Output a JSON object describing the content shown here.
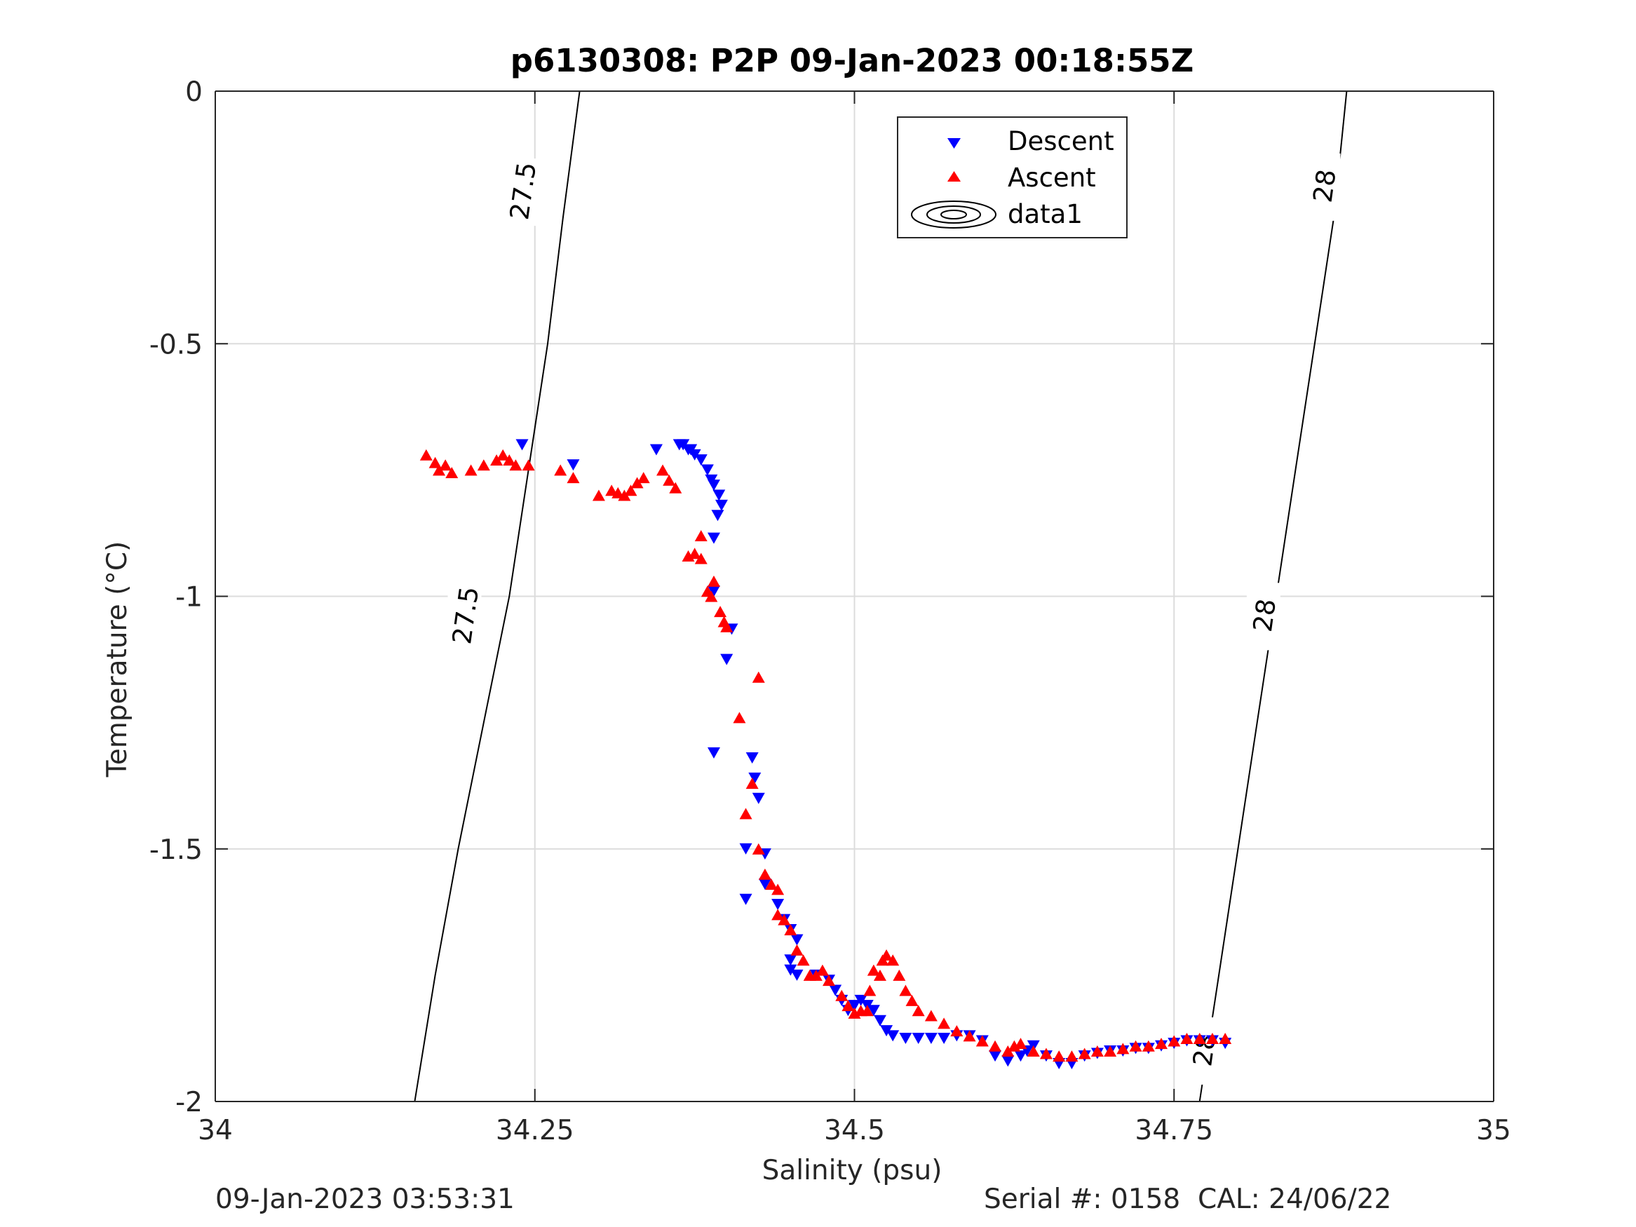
{
  "chart_data": {
    "type": "scatter",
    "title": "p6130308: P2P 09-Jan-2023 00:18:55Z",
    "xlabel": "Salinity (psu)",
    "ylabel": "Temperature (°C)",
    "xlim": [
      34,
      35
    ],
    "ylim": [
      -2,
      0
    ],
    "xticks": [
      34,
      34.25,
      34.5,
      34.75,
      35
    ],
    "xtick_labels": [
      "34",
      "34.25",
      "34.5",
      "34.75",
      "35"
    ],
    "yticks": [
      0,
      -0.5,
      -1,
      -1.5,
      -2
    ],
    "ytick_labels": [
      "0",
      "-0.5",
      "-1",
      "-1.5",
      "-2"
    ],
    "grid": true,
    "legend_position": "top-right",
    "legend": [
      "Descent",
      "Ascent",
      "data1"
    ],
    "contours": [
      {
        "label": "27.5",
        "points": [
          [
            34.156,
            -2
          ],
          [
            34.172,
            -1.75
          ],
          [
            34.19,
            -1.5
          ],
          [
            34.21,
            -1.25
          ],
          [
            34.23,
            -1.0
          ],
          [
            34.245,
            -0.75
          ],
          [
            34.26,
            -0.5
          ],
          [
            34.272,
            -0.25
          ],
          [
            34.285,
            0
          ]
        ],
        "label_positions": [
          [
            34.195,
            -1.04
          ],
          [
            34.24,
            -0.2
          ]
        ]
      },
      {
        "label": "28",
        "points": [
          [
            34.77,
            -2
          ],
          [
            34.785,
            -1.75
          ],
          [
            34.8,
            -1.5
          ],
          [
            34.815,
            -1.25
          ],
          [
            34.83,
            -1.0
          ],
          [
            34.845,
            -0.75
          ],
          [
            34.86,
            -0.5
          ],
          [
            34.875,
            -0.25
          ],
          [
            34.885,
            0
          ]
        ],
        "label_positions": [
          [
            34.773,
            -1.9
          ],
          [
            34.82,
            -1.04
          ],
          [
            34.867,
            -0.19
          ]
        ]
      }
    ],
    "series": [
      {
        "name": "Descent",
        "color": "#0000ff",
        "marker": "triangle-down",
        "points": [
          [
            34.24,
            -0.7
          ],
          [
            34.28,
            -0.74
          ],
          [
            34.345,
            -0.71
          ],
          [
            34.363,
            -0.7
          ],
          [
            34.366,
            -0.7
          ],
          [
            34.37,
            -0.71
          ],
          [
            34.372,
            -0.71
          ],
          [
            34.375,
            -0.72
          ],
          [
            34.38,
            -0.73
          ],
          [
            34.385,
            -0.75
          ],
          [
            34.388,
            -0.77
          ],
          [
            34.39,
            -0.78
          ],
          [
            34.394,
            -0.8
          ],
          [
            34.396,
            -0.82
          ],
          [
            34.393,
            -0.84
          ],
          [
            34.39,
            -0.885
          ],
          [
            34.39,
            -0.99
          ],
          [
            34.404,
            -1.065
          ],
          [
            34.4,
            -1.125
          ],
          [
            34.39,
            -1.31
          ],
          [
            34.42,
            -1.32
          ],
          [
            34.422,
            -1.36
          ],
          [
            34.425,
            -1.4
          ],
          [
            34.415,
            -1.5
          ],
          [
            34.43,
            -1.51
          ],
          [
            34.415,
            -1.6
          ],
          [
            34.43,
            -1.57
          ],
          [
            34.44,
            -1.61
          ],
          [
            34.445,
            -1.64
          ],
          [
            34.45,
            -1.66
          ],
          [
            34.455,
            -1.68
          ],
          [
            34.45,
            -1.72
          ],
          [
            34.45,
            -1.74
          ],
          [
            34.455,
            -1.75
          ],
          [
            34.47,
            -1.75
          ],
          [
            34.48,
            -1.76
          ],
          [
            34.485,
            -1.78
          ],
          [
            34.49,
            -1.8
          ],
          [
            34.495,
            -1.82
          ],
          [
            34.5,
            -1.81
          ],
          [
            34.505,
            -1.8
          ],
          [
            34.51,
            -1.81
          ],
          [
            34.515,
            -1.82
          ],
          [
            34.52,
            -1.84
          ],
          [
            34.525,
            -1.86
          ],
          [
            34.53,
            -1.87
          ],
          [
            34.54,
            -1.875
          ],
          [
            34.55,
            -1.875
          ],
          [
            34.56,
            -1.875
          ],
          [
            34.57,
            -1.875
          ],
          [
            34.58,
            -1.87
          ],
          [
            34.59,
            -1.87
          ],
          [
            34.6,
            -1.88
          ],
          [
            34.61,
            -1.91
          ],
          [
            34.62,
            -1.92
          ],
          [
            34.63,
            -1.91
          ],
          [
            34.635,
            -1.9
          ],
          [
            34.64,
            -1.89
          ],
          [
            34.65,
            -1.91
          ],
          [
            34.66,
            -1.925
          ],
          [
            34.67,
            -1.925
          ],
          [
            34.68,
            -1.91
          ],
          [
            34.69,
            -1.905
          ],
          [
            34.7,
            -1.9
          ],
          [
            34.71,
            -1.9
          ],
          [
            34.72,
            -1.895
          ],
          [
            34.73,
            -1.895
          ],
          [
            34.74,
            -1.89
          ],
          [
            34.75,
            -1.885
          ],
          [
            34.76,
            -1.88
          ],
          [
            34.77,
            -1.88
          ],
          [
            34.78,
            -1.88
          ],
          [
            34.79,
            -1.885
          ]
        ]
      },
      {
        "name": "Ascent",
        "color": "#ff0000",
        "marker": "triangle-up",
        "points": [
          [
            34.165,
            -0.72
          ],
          [
            34.172,
            -0.735
          ],
          [
            34.175,
            -0.75
          ],
          [
            34.18,
            -0.74
          ],
          [
            34.185,
            -0.755
          ],
          [
            34.2,
            -0.75
          ],
          [
            34.21,
            -0.74
          ],
          [
            34.22,
            -0.73
          ],
          [
            34.225,
            -0.72
          ],
          [
            34.23,
            -0.73
          ],
          [
            34.235,
            -0.74
          ],
          [
            34.245,
            -0.74
          ],
          [
            34.27,
            -0.75
          ],
          [
            34.28,
            -0.765
          ],
          [
            34.3,
            -0.8
          ],
          [
            34.31,
            -0.79
          ],
          [
            34.315,
            -0.795
          ],
          [
            34.32,
            -0.8
          ],
          [
            34.325,
            -0.79
          ],
          [
            34.33,
            -0.775
          ],
          [
            34.335,
            -0.765
          ],
          [
            34.35,
            -0.75
          ],
          [
            34.355,
            -0.77
          ],
          [
            34.36,
            -0.785
          ],
          [
            34.37,
            -0.92
          ],
          [
            34.375,
            -0.915
          ],
          [
            34.38,
            -0.88
          ],
          [
            34.38,
            -0.925
          ],
          [
            34.385,
            -0.99
          ],
          [
            34.388,
            -1.0
          ],
          [
            34.39,
            -0.97
          ],
          [
            34.395,
            -1.03
          ],
          [
            34.398,
            -1.05
          ],
          [
            34.4,
            -1.06
          ],
          [
            34.41,
            -1.24
          ],
          [
            34.425,
            -1.16
          ],
          [
            34.42,
            -1.37
          ],
          [
            34.415,
            -1.43
          ],
          [
            34.425,
            -1.5
          ],
          [
            34.43,
            -1.55
          ],
          [
            34.435,
            -1.57
          ],
          [
            34.44,
            -1.58
          ],
          [
            34.44,
            -1.63
          ],
          [
            34.445,
            -1.64
          ],
          [
            34.45,
            -1.66
          ],
          [
            34.455,
            -1.7
          ],
          [
            34.46,
            -1.72
          ],
          [
            34.465,
            -1.75
          ],
          [
            34.47,
            -1.75
          ],
          [
            34.475,
            -1.74
          ],
          [
            34.48,
            -1.76
          ],
          [
            34.49,
            -1.79
          ],
          [
            34.495,
            -1.81
          ],
          [
            34.5,
            -1.825
          ],
          [
            34.505,
            -1.82
          ],
          [
            34.51,
            -1.82
          ],
          [
            34.512,
            -1.78
          ],
          [
            34.515,
            -1.74
          ],
          [
            34.52,
            -1.75
          ],
          [
            34.522,
            -1.72
          ],
          [
            34.525,
            -1.71
          ],
          [
            34.53,
            -1.72
          ],
          [
            34.535,
            -1.75
          ],
          [
            34.54,
            -1.78
          ],
          [
            34.545,
            -1.8
          ],
          [
            34.55,
            -1.82
          ],
          [
            34.56,
            -1.83
          ],
          [
            34.57,
            -1.845
          ],
          [
            34.58,
            -1.86
          ],
          [
            34.59,
            -1.87
          ],
          [
            34.6,
            -1.88
          ],
          [
            34.61,
            -1.89
          ],
          [
            34.62,
            -1.9
          ],
          [
            34.625,
            -1.89
          ],
          [
            34.63,
            -1.885
          ],
          [
            34.64,
            -1.9
          ],
          [
            34.65,
            -1.905
          ],
          [
            34.66,
            -1.91
          ],
          [
            34.67,
            -1.91
          ],
          [
            34.68,
            -1.905
          ],
          [
            34.69,
            -1.9
          ],
          [
            34.7,
            -1.9
          ],
          [
            34.71,
            -1.895
          ],
          [
            34.72,
            -1.89
          ],
          [
            34.73,
            -1.89
          ],
          [
            34.74,
            -1.885
          ],
          [
            34.75,
            -1.88
          ],
          [
            34.76,
            -1.875
          ],
          [
            34.77,
            -1.875
          ],
          [
            34.78,
            -1.875
          ],
          [
            34.79,
            -1.875
          ]
        ]
      }
    ]
  },
  "footer": {
    "timestamp": "09-Jan-2023 03:53:31",
    "serial": "Serial #: 0158  CAL: 24/06/22"
  }
}
